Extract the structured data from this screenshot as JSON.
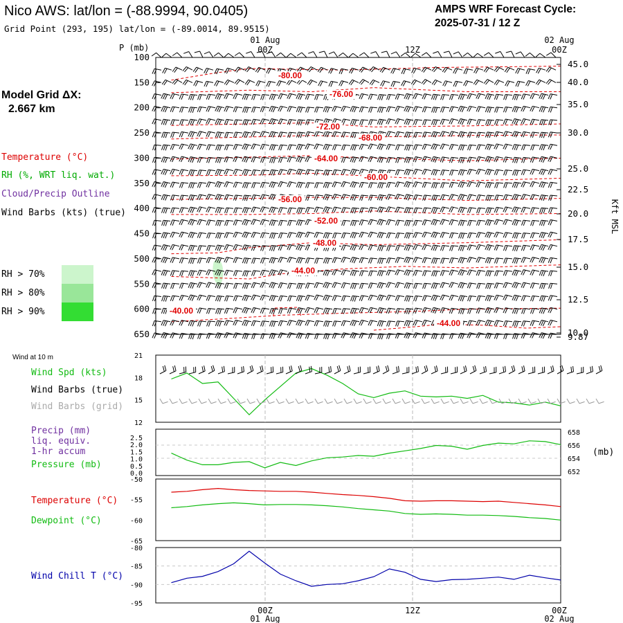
{
  "header": {
    "title": "Nico AWS:  lat/lon = (-88.9994, 90.0405)",
    "grid_point": "Grid Point (293, 195) lat/lon = (-89.0014, 89.9515)",
    "forecast_cycle_label": "AMPS WRF Forecast Cycle:",
    "forecast_cycle_value": "2025-07-31 / 12  Z"
  },
  "model_grid": {
    "label": "Model Grid ΔX:",
    "value": "2.667 km"
  },
  "upper": {
    "p_axis_label": "P (mb)",
    "kft_label": "Kft MSL",
    "top_date_left": "01 Aug",
    "top_date_right": "02 Aug",
    "time_labels": [
      "00Z",
      "12Z",
      "00Z"
    ],
    "p_ticks": [
      "100",
      "150",
      "200",
      "250",
      "300",
      "350",
      "400",
      "450",
      "500",
      "550",
      "600",
      "650"
    ],
    "kft_ticks": [
      "45.0",
      "40.0",
      "35.0",
      "30.0",
      "25.0",
      "22.5",
      "20.0",
      "17.5",
      "15.0",
      "12.5",
      "10.0",
      "9.87"
    ],
    "legend": {
      "temperature": "Temperature (°C)",
      "rh": "RH (%, WRT liq. wat.)",
      "cloud": "Cloud/Precip Outline",
      "wind": "Wind Barbs (kts) (true)"
    },
    "rh_legend": [
      {
        "label": "RH > 70%",
        "color": "#ccf5cc"
      },
      {
        "label": "RH > 80%",
        "color": "#99e699"
      },
      {
        "label": "RH > 90%",
        "color": "#33dd33"
      }
    ],
    "isotherm_labels": [
      "-80.00",
      "-76.00",
      "-72.00",
      "-68.00",
      "-64.00",
      "-60.00",
      "-56.00",
      "-52.00",
      "-48.00",
      "-44.00",
      "-40.00",
      "-44.00"
    ]
  },
  "lower": {
    "wind10_title": "Wind at 10 m",
    "wind_legend": {
      "spd": "Wind Spd (kts)",
      "true": "Wind Barbs (true)",
      "grid": "Wind Barbs (grid)"
    },
    "wind_ticks": [
      "21",
      "18",
      "15",
      "12"
    ],
    "precip_legend": {
      "line1": "Precip (mm)",
      "line2": "liq. equiv.",
      "line3": "1-hr accum",
      "pressure": "Pressure (mb)"
    },
    "precip_ticks": [
      "2.5",
      "2.0",
      "1.5",
      "1.0",
      "0.5",
      "0.0"
    ],
    "pressure_ticks": [
      "658",
      "656",
      "654",
      "652"
    ],
    "mb_label": "(mb)",
    "temp_legend": {
      "temp": "Temperature (°C)",
      "dew": "Dewpoint (°C)"
    },
    "temp_ticks": [
      "-50",
      "-55",
      "-60",
      "-65"
    ],
    "chill_legend": "Wind Chill T (°C)",
    "chill_ticks": [
      "-80",
      "-85",
      "-90",
      "-95"
    ],
    "bottom_time_labels": [
      "00Z",
      "12Z",
      "00Z"
    ],
    "bottom_date_left": "01 Aug",
    "bottom_date_right": "02 Aug"
  },
  "colors": {
    "temperature": "#dd0000",
    "rh": "#00aa00",
    "cloud": "#7030a0",
    "wind_spd": "#11bb11",
    "wind_grid": "#aaaaaa",
    "wind_chill": "#0000aa"
  },
  "chart_data": [
    {
      "type": "line",
      "panel": "vertical cross-section (time vs pressure)",
      "xlabel": "",
      "ylabel": "P (mb)",
      "ylim": [
        650,
        100
      ],
      "x": [
        "2025-07-31T14Z",
        "2025-08-01T00Z",
        "2025-08-01T12Z",
        "2025-08-02T00Z"
      ],
      "series": [
        {
          "name": "-80.00",
          "points": [
            [
              -1,
              145
            ],
            [
              2,
              130
            ],
            [
              4,
              122
            ],
            [
              10,
              125
            ],
            [
              16,
              120
            ],
            [
              22,
              118
            ],
            [
              24,
              117
            ]
          ]
        },
        {
          "name": "-76.00",
          "points": [
            [
              -1,
              170
            ],
            [
              4,
              165
            ],
            [
              8,
              168
            ],
            [
              12,
              160
            ],
            [
              18,
              168
            ],
            [
              24,
              168
            ]
          ]
        },
        {
          "name": "-72.00",
          "points": [
            [
              -1,
              235
            ],
            [
              4,
              232
            ],
            [
              8,
              230
            ],
            [
              12,
              238
            ],
            [
              18,
              236
            ],
            [
              24,
              232
            ]
          ]
        },
        {
          "name": "-68.00",
          "points": [
            [
              -1,
              262
            ],
            [
              4,
              258
            ],
            [
              8,
              255
            ],
            [
              12,
              258
            ],
            [
              18,
              255
            ],
            [
              24,
              254
            ]
          ]
        },
        {
          "name": "-64.00",
          "points": [
            [
              -1,
              302
            ],
            [
              4,
              298
            ],
            [
              8,
              295
            ],
            [
              12,
              300
            ],
            [
              18,
              305
            ],
            [
              24,
              300
            ]
          ]
        },
        {
          "name": "-60.00",
          "points": [
            [
              -1,
              335
            ],
            [
              4,
              334
            ],
            [
              8,
              330
            ],
            [
              12,
              336
            ],
            [
              18,
              345
            ],
            [
              24,
              340
            ]
          ]
        },
        {
          "name": "-56.00",
          "points": [
            [
              -1,
              382
            ],
            [
              4,
              380
            ],
            [
              8,
              378
            ],
            [
              12,
              378
            ],
            [
              18,
              384
            ],
            [
              24,
              380
            ]
          ]
        },
        {
          "name": "-52.00",
          "points": [
            [
              -1,
              412
            ],
            [
              4,
              412
            ],
            [
              8,
              410
            ],
            [
              12,
              405
            ],
            [
              18,
              412
            ],
            [
              24,
              410
            ]
          ]
        },
        {
          "name": "-48.00",
          "points": [
            [
              -1,
              490
            ],
            [
              2,
              488
            ],
            [
              4,
              478
            ],
            [
              8,
              468
            ],
            [
              12,
              472
            ],
            [
              18,
              468
            ],
            [
              24,
              462
            ]
          ]
        },
        {
          "name": "-44.00",
          "points": [
            [
              -1,
              535
            ],
            [
              4,
              540
            ],
            [
              6,
              530
            ],
            [
              10,
              520
            ],
            [
              14,
              515
            ],
            [
              18,
              518
            ],
            [
              24,
              512
            ]
          ]
        },
        {
          "name": "-40.00",
          "points": [
            [
              -1,
              625
            ],
            [
              3,
              618
            ],
            [
              6,
              612
            ],
            [
              10,
              608
            ],
            [
              14,
              605
            ],
            [
              18,
              600
            ],
            [
              24,
              598
            ]
          ]
        }
      ],
      "grid": true
    },
    {
      "type": "line",
      "panel": "Wind at 10 m",
      "ylim": [
        12,
        21
      ],
      "x_hours": [
        -1,
        0,
        1,
        2,
        3,
        4,
        5,
        6,
        7,
        8,
        9,
        10,
        11,
        12,
        13,
        14,
        15,
        16,
        17,
        18,
        19,
        20,
        21,
        22,
        23,
        24
      ],
      "series": [
        {
          "name": "Wind Spd (kts)",
          "values": [
            17.8,
            18.6,
            17.2,
            17.4,
            15.2,
            13.0,
            15.0,
            16.8,
            18.6,
            19.2,
            18.3,
            17.2,
            15.8,
            15.3,
            15.9,
            16.2,
            15.5,
            15.4,
            15.5,
            15.2,
            15.6,
            14.7,
            14.6,
            14.3,
            14.7,
            14.2
          ]
        }
      ]
    },
    {
      "type": "line",
      "panel": "Precip / Pressure",
      "ylim": [
        0.0,
        2.5
      ],
      "y2lim": [
        652,
        658
      ],
      "series": [
        {
          "name": "Pressure (mb)",
          "values": [
            654.9,
            654.0,
            653.4,
            653.4,
            653.7,
            653.8,
            653.0,
            653.7,
            653.3,
            653.9,
            654.3,
            654.4,
            654.6,
            654.5,
            654.9,
            655.2,
            655.5,
            655.9,
            655.8,
            655.4,
            655.9,
            656.2,
            656.1,
            656.5,
            656.4,
            656.0
          ]
        }
      ]
    },
    {
      "type": "line",
      "panel": "Temperature / Dewpoint",
      "ylim": [
        -65,
        -50
      ],
      "series": [
        {
          "name": "Temperature (°C)",
          "values": [
            -53.2,
            -53.0,
            -52.6,
            -52.3,
            -52.6,
            -52.8,
            -52.9,
            -53.0,
            -53.0,
            -53.2,
            -53.5,
            -53.8,
            -54.0,
            -54.3,
            -54.7,
            -55.3,
            -55.4,
            -55.3,
            -55.3,
            -55.4,
            -55.5,
            -55.4,
            -55.7,
            -56.0,
            -56.3,
            -56.7
          ]
        },
        {
          "name": "Dewpoint (°C)",
          "values": [
            -57.0,
            -56.7,
            -56.3,
            -56.0,
            -55.8,
            -56.0,
            -56.3,
            -56.2,
            -56.2,
            -56.3,
            -56.5,
            -56.8,
            -57.2,
            -57.5,
            -57.8,
            -58.4,
            -58.6,
            -58.5,
            -58.6,
            -58.8,
            -58.8,
            -58.9,
            -59.1,
            -59.4,
            -59.6,
            -60.0
          ]
        }
      ]
    },
    {
      "type": "line",
      "panel": "Wind Chill",
      "ylim": [
        -95,
        -80
      ],
      "series": [
        {
          "name": "Wind Chill T (°C)",
          "values": [
            -89.5,
            -88.3,
            -87.8,
            -86.5,
            -84.4,
            -81.0,
            -84.2,
            -87.2,
            -89.0,
            -90.5,
            -90.0,
            -89.8,
            -89.0,
            -87.9,
            -85.8,
            -86.7,
            -88.6,
            -89.2,
            -88.7,
            -88.6,
            -88.3,
            -88.0,
            -88.6,
            -87.5,
            -88.2,
            -88.8
          ]
        }
      ]
    }
  ]
}
